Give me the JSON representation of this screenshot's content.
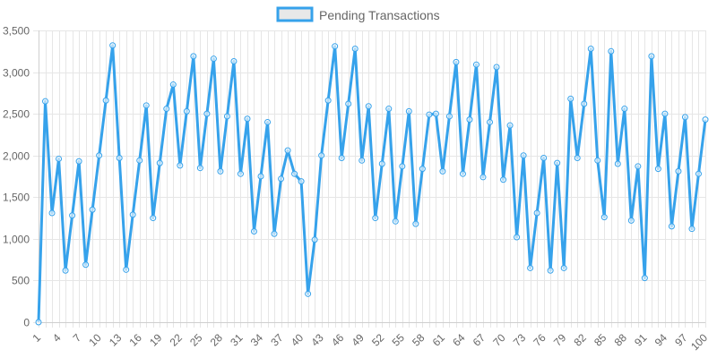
{
  "chart_data": {
    "type": "line",
    "title": "",
    "xlabel": "",
    "ylabel": "",
    "ylim": [
      0,
      3500
    ],
    "ytick_step": 500,
    "grid": true,
    "legend_position": "top-center",
    "colors": {
      "line": "#36a2eb",
      "legend_fill": "#e8e8e8",
      "grid": "#e6e6e6",
      "text": "#666666"
    },
    "x": [
      1,
      2,
      3,
      4,
      5,
      6,
      7,
      8,
      9,
      10,
      11,
      12,
      13,
      14,
      15,
      16,
      17,
      18,
      19,
      20,
      21,
      22,
      23,
      24,
      25,
      26,
      27,
      28,
      29,
      30,
      31,
      32,
      33,
      34,
      35,
      36,
      37,
      38,
      39,
      40,
      41,
      42,
      43,
      44,
      45,
      46,
      47,
      48,
      49,
      50,
      51,
      52,
      53,
      54,
      55,
      56,
      57,
      58,
      59,
      60,
      61,
      62,
      63,
      64,
      65,
      66,
      67,
      68,
      69,
      70,
      71,
      72,
      73,
      74,
      75,
      76,
      77,
      78,
      79,
      80,
      81,
      82,
      83,
      84,
      85,
      86,
      87,
      88,
      89,
      90,
      91,
      92,
      93,
      94,
      95,
      96,
      97,
      98,
      99,
      100
    ],
    "x_tick_labels": [
      "1",
      "4",
      "7",
      "10",
      "13",
      "16",
      "19",
      "22",
      "25",
      "28",
      "31",
      "34",
      "37",
      "40",
      "43",
      "46",
      "49",
      "52",
      "55",
      "58",
      "61",
      "64",
      "67",
      "70",
      "73",
      "76",
      "79",
      "82",
      "85",
      "88",
      "91",
      "94",
      "97",
      "100"
    ],
    "series": [
      {
        "name": "Pending Transactions",
        "values": [
          0,
          2650,
          1310,
          1960,
          620,
          1280,
          1930,
          690,
          1350,
          2000,
          2660,
          3320,
          1970,
          630,
          1290,
          1940,
          2600,
          1250,
          1910,
          2560,
          2850,
          1880,
          2530,
          3190,
          1850,
          2500,
          3160,
          1810,
          2470,
          3130,
          1780,
          2440,
          1090,
          1750,
          2400,
          1060,
          1720,
          2060,
          1780,
          1690,
          340,
          990,
          2000,
          2660,
          3310,
          1970,
          2620,
          3280,
          1940,
          2590,
          1250,
          1900,
          2560,
          1210,
          1870,
          2530,
          1180,
          1840,
          2490,
          2500,
          1810,
          2470,
          3120,
          1780,
          2430,
          3090,
          1740,
          2400,
          3060,
          1710,
          2360,
          1020,
          2000,
          650,
          1310,
          1970,
          620,
          1910,
          650,
          2680,
          1970,
          2620,
          3280,
          1940,
          1260,
          3250,
          1900,
          2560,
          1220,
          1870,
          530,
          3190,
          1840,
          2500,
          1150,
          1810,
          2460,
          1120,
          1780,
          2430
        ]
      }
    ]
  }
}
